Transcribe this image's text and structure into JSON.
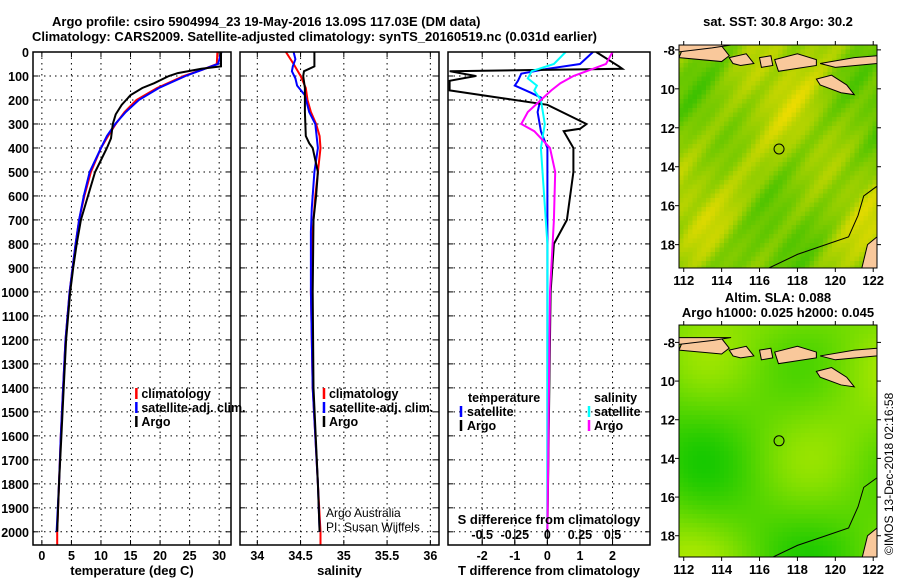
{
  "title_line1": "Argo profile: csiro 5904994_23 19-May-2016 13.09S 117.03E (DM data)",
  "title_line2": "Climatology: CARS2009. Satellite-adjusted climatology: synTS_20160519.nc (0.031d earlier)",
  "credit": "©IMOS 13-Dec-2018 02:16:58",
  "colors": {
    "climatology": "#ff0000",
    "satellite": "#0000ff",
    "argo": "#000000",
    "sal_sat": "#00ffff",
    "sal_argo": "#ff00ff",
    "land": "#f9c89b"
  },
  "chart_data": [
    {
      "id": "temperature",
      "type": "line",
      "xlabel": "temperature (deg C)",
      "ylabel": "",
      "xlim": [
        -1.5,
        32
      ],
      "ylim": [
        2055,
        0
      ],
      "xticks": [
        0,
        5,
        10,
        15,
        20,
        25,
        30
      ],
      "yticks": [
        0,
        100,
        200,
        300,
        400,
        500,
        600,
        700,
        800,
        900,
        1000,
        1100,
        1200,
        1300,
        1400,
        1500,
        1600,
        1700,
        1800,
        1900,
        2000
      ],
      "grid": true,
      "legend": {
        "placement": "middle-right",
        "entries": [
          "climatology",
          "satellite-adj. clim.",
          "Argo"
        ]
      },
      "series": [
        {
          "name": "climatology",
          "color": "#ff0000",
          "points": [
            [
              29.7,
              0
            ],
            [
              29.6,
              50
            ],
            [
              27,
              75
            ],
            [
              24,
              100
            ],
            [
              19.5,
              150
            ],
            [
              16,
              200
            ],
            [
              14,
              250
            ],
            [
              12.5,
              300
            ],
            [
              11.2,
              350
            ],
            [
              10,
              400
            ],
            [
              8.3,
              500
            ],
            [
              7.2,
              600
            ],
            [
              6.3,
              700
            ],
            [
              5.7,
              800
            ],
            [
              5.2,
              900
            ],
            [
              4.7,
              1000
            ],
            [
              4.0,
              1200
            ],
            [
              3.6,
              1400
            ],
            [
              3.2,
              1600
            ],
            [
              2.9,
              1800
            ],
            [
              2.6,
              2000
            ],
            [
              2.6,
              2055
            ]
          ]
        },
        {
          "name": "satellite-adj. clim.",
          "color": "#0000ff",
          "points": [
            [
              30.4,
              0
            ],
            [
              29.8,
              50
            ],
            [
              27,
              75
            ],
            [
              24.3,
              100
            ],
            [
              19.8,
              150
            ],
            [
              16.4,
              200
            ],
            [
              14.2,
              250
            ],
            [
              12.4,
              300
            ],
            [
              11,
              350
            ],
            [
              10,
              400
            ],
            [
              8.1,
              500
            ],
            [
              7.1,
              600
            ],
            [
              6.3,
              700
            ],
            [
              5.7,
              800
            ],
            [
              5.2,
              900
            ],
            [
              4.7,
              1000
            ],
            [
              4.0,
              1200
            ],
            [
              3.6,
              1400
            ],
            [
              3.2,
              1600
            ],
            [
              2.9,
              1800
            ],
            [
              2.5,
              2000
            ]
          ]
        },
        {
          "name": "Argo",
          "color": "#000000",
          "points": [
            [
              30.3,
              0
            ],
            [
              30.3,
              60
            ],
            [
              27,
              70
            ],
            [
              23,
              88
            ],
            [
              21.5,
              100
            ],
            [
              19,
              130
            ],
            [
              17,
              150
            ],
            [
              15,
              180
            ],
            [
              13.5,
              220
            ],
            [
              12.5,
              260
            ],
            [
              12,
              300
            ],
            [
              11.7,
              360
            ],
            [
              11,
              400
            ],
            [
              10,
              450
            ],
            [
              9,
              500
            ],
            [
              7.8,
              600
            ],
            [
              6.6,
              700
            ],
            [
              5.9,
              800
            ],
            [
              5.3,
              900
            ],
            [
              4.8,
              1000
            ],
            [
              4.1,
              1200
            ],
            [
              3.7,
              1400
            ],
            [
              3.3,
              1600
            ],
            [
              2.9,
              1800
            ],
            [
              2.6,
              2000
            ]
          ]
        }
      ]
    },
    {
      "id": "salinity",
      "type": "line",
      "xlabel": "salinity",
      "xlim": [
        33.8,
        36.1
      ],
      "ylim": [
        2055,
        0
      ],
      "xticks": [
        34,
        34.5,
        35,
        35.5,
        36
      ],
      "grid": true,
      "legend": {
        "placement": "middle-right",
        "entries": [
          "climatology",
          "satellite-adj. clim.",
          "Argo"
        ]
      },
      "annotation": [
        "Argo Australia",
        "PI: Susan Wijffels"
      ],
      "series": [
        {
          "name": "climatology",
          "color": "#ff0000",
          "points": [
            [
              34.33,
              0
            ],
            [
              34.42,
              50
            ],
            [
              34.5,
              100
            ],
            [
              34.56,
              150
            ],
            [
              34.58,
              200
            ],
            [
              34.62,
              250
            ],
            [
              34.68,
              300
            ],
            [
              34.72,
              350
            ],
            [
              34.73,
              400
            ],
            [
              34.7,
              500
            ],
            [
              34.67,
              600
            ],
            [
              34.65,
              700
            ],
            [
              34.63,
              800
            ],
            [
              34.62,
              1000
            ],
            [
              34.64,
              1400
            ],
            [
              34.7,
              1800
            ],
            [
              34.73,
              2000
            ],
            [
              34.73,
              2055
            ]
          ]
        },
        {
          "name": "satellite-adj. clim.",
          "color": "#0000ff",
          "points": [
            [
              34.42,
              0
            ],
            [
              34.44,
              30
            ],
            [
              34.41,
              60
            ],
            [
              34.4,
              80
            ],
            [
              34.44,
              110
            ],
            [
              34.46,
              140
            ],
            [
              34.55,
              180
            ],
            [
              34.6,
              250
            ],
            [
              34.67,
              300
            ],
            [
              34.7,
              400
            ],
            [
              34.66,
              500
            ],
            [
              34.63,
              650
            ],
            [
              34.62,
              750
            ],
            [
              34.62,
              1000
            ],
            [
              34.64,
              1400
            ],
            [
              34.7,
              1800
            ],
            [
              34.72,
              2000
            ]
          ]
        },
        {
          "name": "Argo",
          "color": "#000000",
          "points": [
            [
              34.66,
              0
            ],
            [
              34.66,
              60
            ],
            [
              34.6,
              70
            ],
            [
              34.54,
              80
            ],
            [
              34.53,
              100
            ],
            [
              34.55,
              150
            ],
            [
              34.55,
              250
            ],
            [
              34.56,
              350
            ],
            [
              34.6,
              380
            ],
            [
              34.64,
              400
            ],
            [
              34.7,
              500
            ],
            [
              34.68,
              600
            ],
            [
              34.65,
              700
            ],
            [
              34.64,
              1000
            ],
            [
              34.65,
              1400
            ],
            [
              34.7,
              1800
            ],
            [
              34.72,
              2000
            ]
          ]
        }
      ]
    },
    {
      "id": "differences",
      "type": "line",
      "xlabel": "T difference from climatology",
      "xlabel2": "S difference from climatology",
      "xlim": [
        -3.05,
        3.15
      ],
      "ylim": [
        2055,
        0
      ],
      "xticks": [
        -2,
        -1,
        0,
        1,
        2
      ],
      "xticks2": [
        -0.5,
        -0.25,
        0,
        0.25,
        0.5
      ],
      "xticks2_labels": [
        "-0.5",
        "-0.25",
        "0",
        "0.25",
        "0.5"
      ],
      "s_scale": 0.25,
      "grid": true,
      "legend": {
        "temperature_title": "temperature",
        "salinity_title": "salinity",
        "entries": [
          "satellite",
          "Argo"
        ]
      },
      "series": [
        {
          "name": "T satellite",
          "kind": "T",
          "color": "#0000ff",
          "points": [
            [
              1.4,
              0
            ],
            [
              1.0,
              50
            ],
            [
              0,
              70
            ],
            [
              -0.8,
              90
            ],
            [
              -0.9,
              120
            ],
            [
              -1,
              140
            ],
            [
              -0.5,
              170
            ],
            [
              -0.2,
              190
            ],
            [
              -0.3,
              250
            ],
            [
              -0.2,
              330
            ],
            [
              0,
              400
            ],
            [
              0,
              800
            ],
            [
              0,
              2000
            ]
          ]
        },
        {
          "name": "T Argo",
          "kind": "T",
          "color": "#000000",
          "points": [
            [
              1.5,
              0
            ],
            [
              2.2,
              60
            ],
            [
              2.3,
              70
            ],
            [
              -3,
              80
            ],
            [
              -2.2,
              100
            ],
            [
              -3,
              120
            ],
            [
              -3,
              160
            ],
            [
              -1.5,
              190
            ],
            [
              0,
              220
            ],
            [
              1.2,
              300
            ],
            [
              1.0,
              320
            ],
            [
              0.5,
              330
            ],
            [
              0.8,
              400
            ],
            [
              0.8,
              500
            ],
            [
              0.6,
              700
            ],
            [
              0.2,
              800
            ],
            [
              0.1,
              1000
            ],
            [
              0.05,
              1500
            ],
            [
              0,
              2000
            ]
          ]
        },
        {
          "name": "S satellite",
          "kind": "S",
          "color": "#00ffff",
          "points": [
            [
              0.14,
              0
            ],
            [
              0.05,
              50
            ],
            [
              -0.12,
              80
            ],
            [
              -0.15,
              110
            ],
            [
              -0.08,
              140
            ],
            [
              -0.1,
              160
            ],
            [
              -0.05,
              200
            ],
            [
              -0.02,
              300
            ],
            [
              -0.05,
              400
            ],
            [
              0,
              800
            ],
            [
              0,
              2000
            ]
          ]
        },
        {
          "name": "S Argo",
          "kind": "S",
          "color": "#ff00ff",
          "points": [
            [
              0.5,
              0
            ],
            [
              0.45,
              50
            ],
            [
              0.35,
              70
            ],
            [
              0.2,
              100
            ],
            [
              0.1,
              130
            ],
            [
              0.03,
              160
            ],
            [
              -0.05,
              200
            ],
            [
              -0.15,
              250
            ],
            [
              -0.2,
              300
            ],
            [
              -0.1,
              330
            ],
            [
              0.02,
              400
            ],
            [
              0.06,
              500
            ],
            [
              0.05,
              700
            ],
            [
              0.02,
              1000
            ],
            [
              0,
              2000
            ]
          ]
        }
      ]
    },
    {
      "id": "sst_map",
      "type": "heatmap",
      "title": "sat. SST: 30.8 Argo: 30.2",
      "xlim": [
        111.75,
        122.2
      ],
      "ylim": [
        -19.2,
        -7.75
      ],
      "xticks": [
        112,
        114,
        116,
        118,
        120,
        122
      ],
      "yticks": [
        -8,
        -10,
        -12,
        -14,
        -16,
        -18
      ],
      "ytick_labels": [
        "-8",
        "10",
        "12",
        "14",
        "16",
        "18"
      ],
      "marker": {
        "lon": 117.03,
        "lat": -13.09
      }
    },
    {
      "id": "sla_map",
      "type": "heatmap",
      "title": "Altim. SLA: 0.088",
      "subtitle": "Argo h1000: 0.025 h2000: 0.045",
      "xlim": [
        111.75,
        122.2
      ],
      "ylim": [
        -19.1,
        -7.1
      ],
      "xticks": [
        112,
        114,
        116,
        118,
        120,
        122
      ],
      "yticks": [
        -8,
        -10,
        -12,
        -14,
        -16,
        -18
      ],
      "ytick_labels": [
        "-8",
        "10",
        "12",
        "14",
        "16",
        "18"
      ],
      "marker": {
        "lon": 117.03,
        "lat": -13.09
      }
    }
  ]
}
